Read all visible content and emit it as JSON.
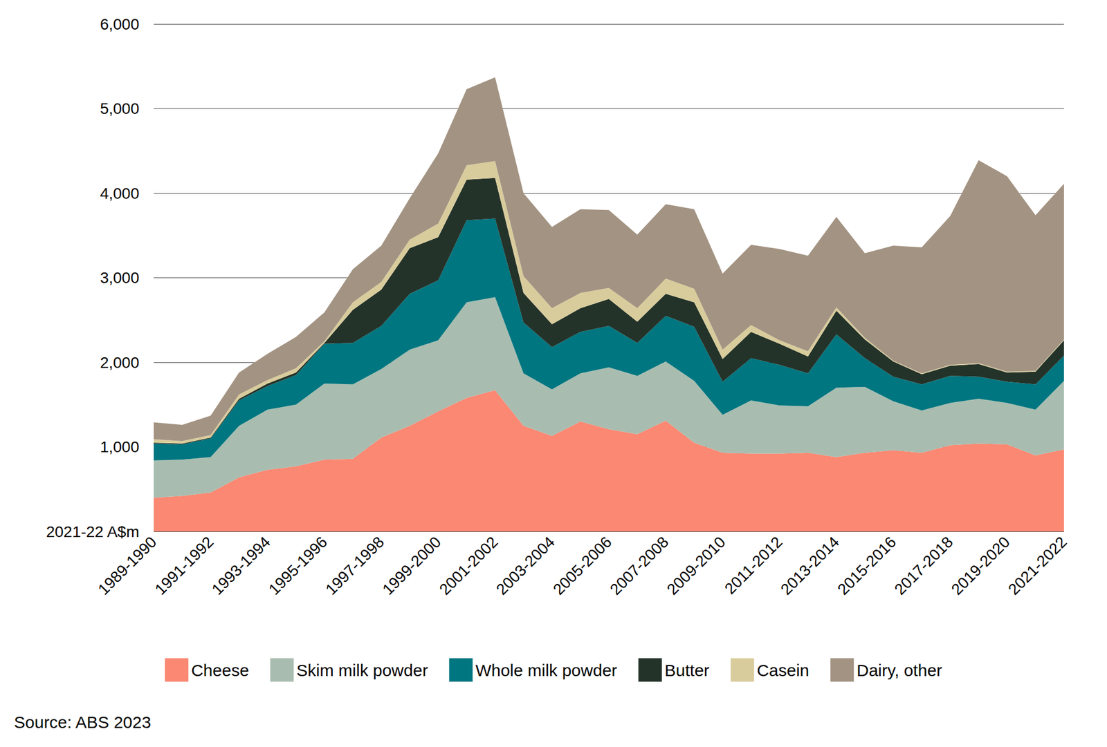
{
  "chart_data": {
    "type": "area",
    "stacked": true,
    "grid": true,
    "legend": "bottom",
    "source": "Source: ABS 2023",
    "categories": [
      "1989-1990",
      null,
      "1991-1992",
      null,
      "1993-1994",
      null,
      "1995-1996",
      null,
      "1997-1998",
      null,
      "1999-2000",
      null,
      "2001-2002",
      null,
      "2003-2004",
      null,
      "2005-2006",
      null,
      "2007-2008",
      null,
      "2009-2010",
      null,
      "2011-2012",
      null,
      "2013-2014",
      null,
      "2015-2016",
      null,
      "2017-2018",
      null,
      "2019-2020",
      null,
      "2021-2022"
    ],
    "ylim": [
      0,
      6000
    ],
    "yticks": [
      {
        "value": 0,
        "label": "2021-22 A$m"
      },
      {
        "value": 1000,
        "label": "1,000"
      },
      {
        "value": 2000,
        "label": "2,000"
      },
      {
        "value": 3000,
        "label": "3,000"
      },
      {
        "value": 4000,
        "label": "4,000"
      },
      {
        "value": 5000,
        "label": "5,000"
      },
      {
        "value": 6000,
        "label": "6,000"
      }
    ],
    "series": [
      {
        "name": "Cheese",
        "color": "#fa8872",
        "values": [
          400,
          420,
          460,
          640,
          730,
          770,
          850,
          860,
          1110,
          1250,
          1420,
          1580,
          1670,
          1250,
          1130,
          1300,
          1210,
          1150,
          1310,
          1050,
          930,
          920,
          920,
          930,
          880,
          930,
          960,
          930,
          1020,
          1040,
          1030,
          900,
          970
        ]
      },
      {
        "name": "Skim milk powder",
        "color": "#a8bdb0",
        "values": [
          440,
          430,
          420,
          610,
          710,
          730,
          900,
          880,
          810,
          900,
          840,
          1130,
          1100,
          620,
          550,
          570,
          730,
          690,
          700,
          730,
          450,
          630,
          570,
          550,
          820,
          780,
          580,
          500,
          500,
          530,
          490,
          540,
          810
        ]
      },
      {
        "name": "Whole milk powder",
        "color": "#007680",
        "values": [
          200,
          180,
          220,
          300,
          280,
          350,
          470,
          490,
          510,
          660,
          710,
          970,
          930,
          600,
          500,
          490,
          490,
          390,
          540,
          640,
          390,
          500,
          480,
          390,
          630,
          340,
          290,
          310,
          320,
          260,
          250,
          300,
          300
        ]
      },
      {
        "name": "Butter",
        "color": "#243329",
        "values": [
          10,
          10,
          10,
          20,
          30,
          30,
          10,
          390,
          430,
          540,
          510,
          480,
          480,
          350,
          270,
          280,
          320,
          250,
          260,
          290,
          270,
          310,
          250,
          200,
          280,
          220,
          180,
          120,
          120,
          150,
          110,
          150,
          180
        ]
      },
      {
        "name": "Casein",
        "color": "#d9cc9c",
        "values": [
          40,
          30,
          30,
          50,
          40,
          50,
          20,
          90,
          90,
          100,
          160,
          170,
          200,
          200,
          190,
          180,
          130,
          160,
          180,
          160,
          110,
          80,
          40,
          60,
          40,
          20,
          10,
          10,
          10,
          10,
          10,
          10,
          10
        ]
      },
      {
        "name": "Dairy, other",
        "color": "#a39382",
        "values": [
          200,
          190,
          230,
          260,
          310,
          370,
          340,
          390,
          430,
          490,
          830,
          900,
          990,
          980,
          960,
          990,
          920,
          870,
          880,
          940,
          900,
          950,
          1080,
          1130,
          1070,
          1000,
          1360,
          1490,
          1760,
          2400,
          2310,
          1840,
          1840
        ]
      }
    ]
  }
}
